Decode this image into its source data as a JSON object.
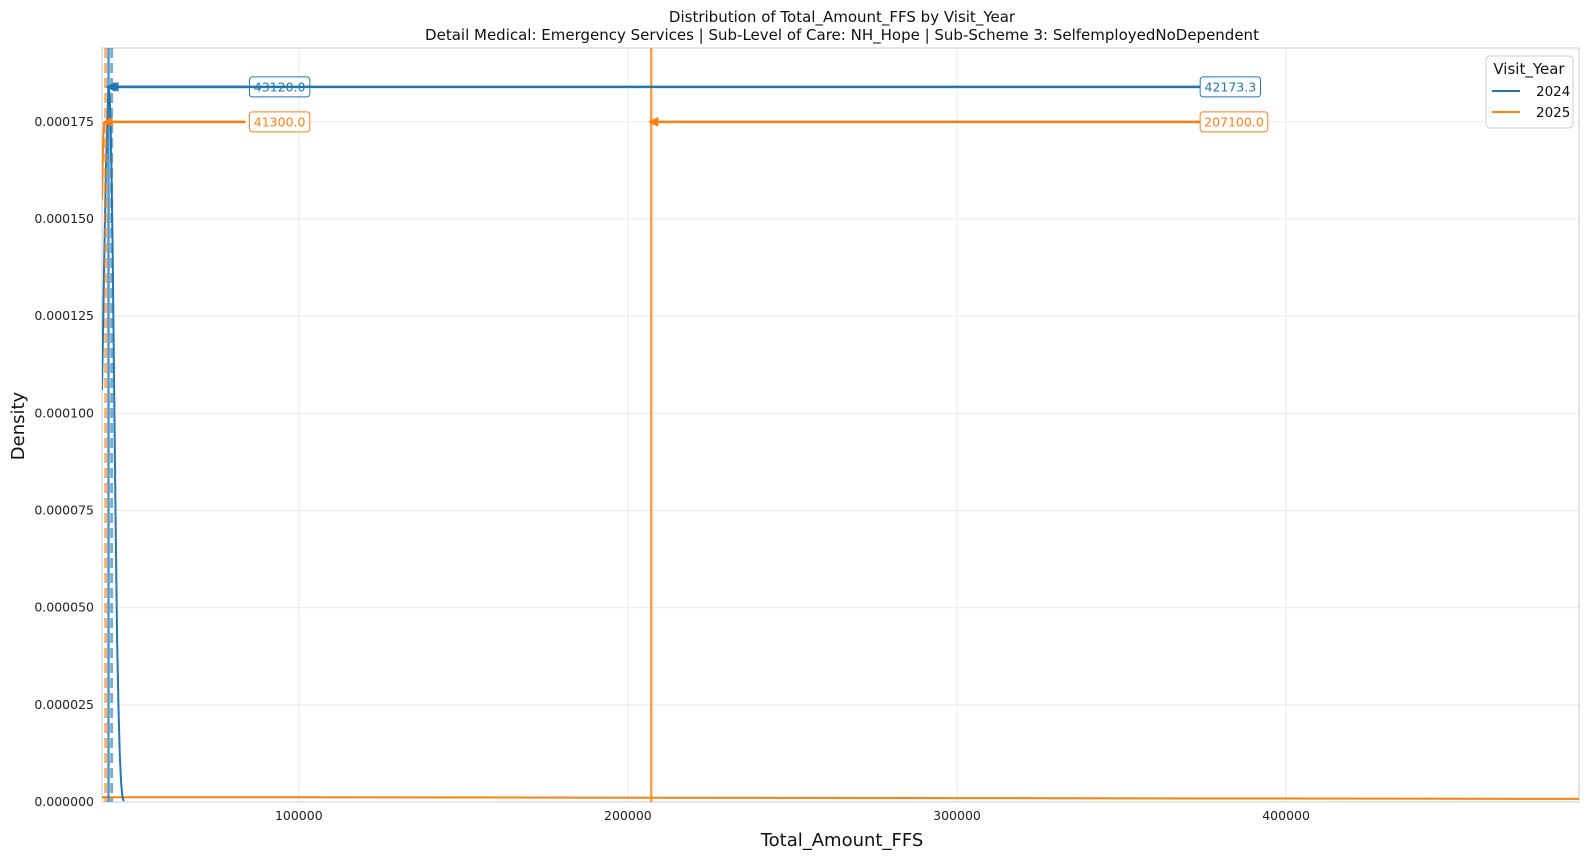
{
  "chart_data": {
    "type": "line",
    "title": "Distribution of Total_Amount_FFS by Visit_Year",
    "subtitle": "Detail Medical: Emergency Services | Sub-Level of Care: NH_Hope | Sub-Scheme 3: SelfemployedNoDependent",
    "xlabel": "Total_Amount_FFS",
    "ylabel": "Density",
    "xlim": [
      40200,
      489000
    ],
    "ylim": [
      0,
      0.000194
    ],
    "x_ticks": [
      100000,
      200000,
      300000,
      400000
    ],
    "x_tick_labels": [
      "100000",
      "200000",
      "300000",
      "400000"
    ],
    "y_ticks": [
      0,
      2.5e-05,
      5e-05,
      7.5e-05,
      0.0001,
      0.000125,
      0.00015,
      0.000175
    ],
    "y_tick_labels": [
      "0.000000",
      "0.000025",
      "0.000050",
      "0.000075",
      "0.000100",
      "0.000125",
      "0.000150",
      "0.000175"
    ],
    "grid": true,
    "legend_title": "Visit_Year",
    "legend_position": "top-right",
    "series": [
      {
        "name": "2024",
        "color": "#1f77b4",
        "points": [
          [
            40200,
            0.000106
          ],
          [
            40600,
            0.000125
          ],
          [
            41000,
            0.000145
          ],
          [
            41400,
            0.000162
          ],
          [
            41800,
            0.000175
          ],
          [
            42173,
            0.000184
          ],
          [
            42500,
            0.000182
          ],
          [
            42800,
            0.000175
          ],
          [
            43100,
            0.000162
          ],
          [
            43400,
            0.000145
          ],
          [
            43700,
            0.000122
          ],
          [
            44000,
            9.8e-05
          ],
          [
            44400,
            6.8e-05
          ],
          [
            44800,
            4.2e-05
          ],
          [
            45200,
            2.4e-05
          ],
          [
            45600,
            1.2e-05
          ],
          [
            46000,
            5e-06
          ],
          [
            46400,
            1.5e-06
          ],
          [
            46800,
            2e-07
          ]
        ],
        "mean_line": 42173.3,
        "median_line": 43120.0,
        "peak_density": 0.000184
      },
      {
        "name": "2025",
        "color": "#ff7f0e",
        "points": [
          [
            40200,
            1.2e-06
          ],
          [
            100000,
            1.2e-06
          ],
          [
            200000,
            1.1e-06
          ],
          [
            300000,
            1e-06
          ],
          [
            400000,
            9e-07
          ],
          [
            489000,
            8e-07
          ]
        ],
        "steep_points": [
          [
            40200,
            0.000155
          ],
          [
            40500,
            0.000168
          ],
          [
            40800,
            0.000175
          ]
        ],
        "mean_line": 207100.0,
        "median_line": 41300.0,
        "peak_density": 0.000175
      }
    ],
    "annotations": [
      {
        "series": "2024",
        "text": "43120.0",
        "anchor_x": 85000,
        "target_x": 43120.0,
        "y": 0.000184
      },
      {
        "series": "2024",
        "text": "42173.3",
        "anchor_x": 383000,
        "target_x": 42173.3,
        "y": 0.000184
      },
      {
        "series": "2025",
        "text": "41300.0",
        "anchor_x": 85000,
        "target_x": 41300.0,
        "y": 0.000175
      },
      {
        "series": "2025",
        "text": "207100.0",
        "anchor_x": 383000,
        "target_x": 207100.0,
        "y": 0.000175
      }
    ]
  }
}
